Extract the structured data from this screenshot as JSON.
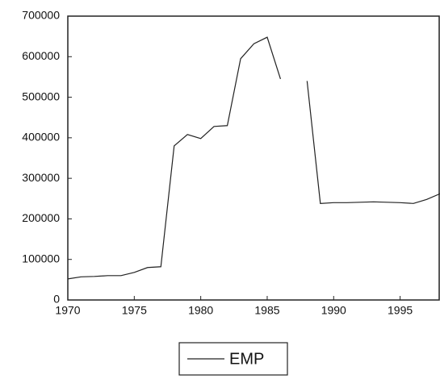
{
  "chart_data": {
    "type": "line",
    "x": [
      1970,
      1971,
      1972,
      1973,
      1974,
      1975,
      1976,
      1977,
      1978,
      1979,
      1980,
      1981,
      1982,
      1983,
      1984,
      1985,
      1986,
      1987,
      1988,
      1989,
      1990,
      1991,
      1992,
      1993,
      1994,
      1995,
      1996,
      1997,
      1998
    ],
    "series": [
      {
        "name": "EMP",
        "color": "#222222",
        "values": [
          52000,
          57000,
          58000,
          60000,
          60000,
          68000,
          80000,
          82000,
          380000,
          408000,
          398000,
          428000,
          430000,
          595000,
          632000,
          648000,
          545000,
          null,
          540000,
          238000,
          240000,
          240000,
          241000,
          242000,
          241000,
          240000,
          238000,
          248000,
          262000
        ]
      }
    ],
    "xlim": [
      1970,
      1998
    ],
    "xticks": [
      1970,
      1975,
      1980,
      1985,
      1990,
      1995
    ],
    "ylim": [
      0,
      700000
    ],
    "yticks": [
      0,
      100000,
      200000,
      300000,
      400000,
      500000,
      600000,
      700000
    ],
    "grid": false,
    "legend": "bottom"
  }
}
